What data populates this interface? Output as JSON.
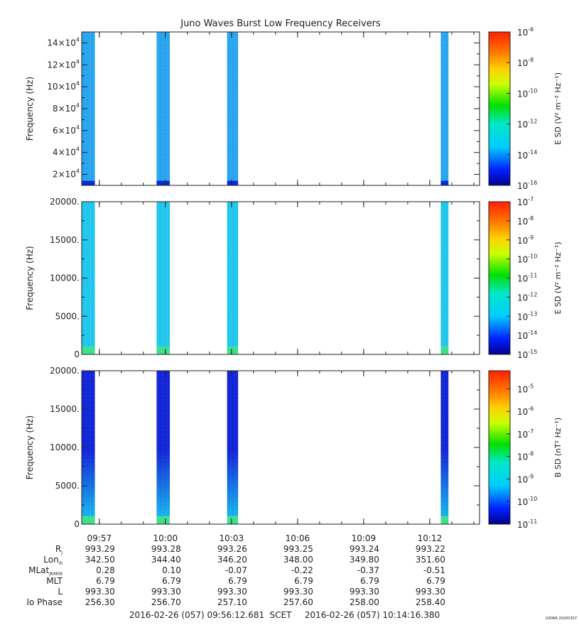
{
  "title": "Juno Waves Burst Low Frequency Receivers",
  "time_range": {
    "start": "2016-02-26 (057) 09:56:12.681",
    "label": "SCET",
    "end": "2016-02-26 (057) 10:14:16.380"
  },
  "credit": "UIOWA 20200307",
  "x_ticks": [
    "09:57",
    "10:00",
    "10:03",
    "10:06",
    "10:09",
    "10:12"
  ],
  "x_tick_minutes": [
    0.8,
    3.8,
    6.8,
    9.8,
    12.8,
    15.8
  ],
  "burst_minutes": [
    {
      "start": 0.0,
      "end": 0.6
    },
    {
      "start": 3.4,
      "end": 4.0
    },
    {
      "start": 6.6,
      "end": 7.1
    },
    {
      "start": 16.3,
      "end": 16.65
    }
  ],
  "time_span_minutes": 18.06,
  "ephemeris": {
    "labels": [
      {
        "main": "R",
        "sub": "J"
      },
      {
        "main": "Lon",
        "sub": "III"
      },
      {
        "main": "MLat",
        "sub": "JRM09"
      },
      {
        "main": "MLT",
        "sub": ""
      },
      {
        "main": "L",
        "sub": ""
      },
      {
        "main": "Io Phase",
        "sub": ""
      }
    ],
    "rows": [
      [
        "993.29",
        "993.28",
        "993.26",
        "993.25",
        "993.24",
        "993.22"
      ],
      [
        "342.50",
        "344.40",
        "346.20",
        "348.00",
        "349.80",
        "351.60"
      ],
      [
        "0.28",
        "0.10",
        "-0.07",
        "-0.22",
        "-0.37",
        "-0.51"
      ],
      [
        "6.79",
        "6.79",
        "6.79",
        "6.79",
        "6.79",
        "6.79"
      ],
      [
        "993.30",
        "993.30",
        "993.30",
        "993.30",
        "993.30",
        "993.30"
      ],
      [
        "256.30",
        "256.70",
        "257.10",
        "257.60",
        "258.00",
        "258.40"
      ]
    ]
  },
  "chart_data": [
    {
      "type": "heatmap",
      "title": "Juno Waves Burst Low Frequency Receivers",
      "ylabel": "Frequency (Hz)",
      "ylim": [
        10000,
        150000
      ],
      "y_ticks": [
        {
          "value": 20000,
          "mantissa": "2×10",
          "exp": "4"
        },
        {
          "value": 40000,
          "mantissa": "4×10",
          "exp": "4"
        },
        {
          "value": 60000,
          "mantissa": "6×10",
          "exp": "4"
        },
        {
          "value": 80000,
          "mantissa": "8×10",
          "exp": "4"
        },
        {
          "value": 100000,
          "mantissa": "10×10",
          "exp": "4"
        },
        {
          "value": 120000,
          "mantissa": "12×10",
          "exp": "4"
        },
        {
          "value": 140000,
          "mantissa": "14×10",
          "exp": "4"
        }
      ],
      "colorbar": {
        "label": "E SD (V² m⁻² Hz⁻¹)",
        "log_range": [
          -16,
          -6
        ],
        "ticks": [
          {
            "exp": "-6",
            "value": -6
          },
          {
            "exp": "-8",
            "value": -8
          },
          {
            "exp": "-10",
            "value": -10
          },
          {
            "exp": "-12",
            "value": -12
          },
          {
            "exp": "-14",
            "value": -14
          },
          {
            "exp": "-16",
            "value": -16
          }
        ]
      },
      "band": {
        "low_color": "#0a2bd6",
        "main_color": "#2aa6f0",
        "low_fraction": 0.03
      }
    },
    {
      "type": "heatmap",
      "ylabel": "Frequency (Hz)",
      "ylim": [
        0,
        20000
      ],
      "y_ticks": [
        {
          "value": 0,
          "mantissa": "0",
          "exp": ""
        },
        {
          "value": 5000,
          "mantissa": "5000.",
          "exp": ""
        },
        {
          "value": 10000,
          "mantissa": "10000.",
          "exp": ""
        },
        {
          "value": 15000,
          "mantissa": "15000.",
          "exp": ""
        },
        {
          "value": 20000,
          "mantissa": "20000.",
          "exp": ""
        }
      ],
      "colorbar": {
        "label": "E SD (V² m⁻² Hz⁻¹)",
        "log_range": [
          -15,
          -7
        ],
        "ticks": [
          {
            "exp": "-7",
            "value": -7
          },
          {
            "exp": "-8",
            "value": -8
          },
          {
            "exp": "-9",
            "value": -9
          },
          {
            "exp": "-10",
            "value": -10
          },
          {
            "exp": "-11",
            "value": -11
          },
          {
            "exp": "-12",
            "value": -12
          },
          {
            "exp": "-13",
            "value": -13
          },
          {
            "exp": "-14",
            "value": -14
          },
          {
            "exp": "-15",
            "value": -15
          }
        ]
      },
      "band": {
        "low_color": "#3ee08a",
        "main_color": "#22c8ee",
        "low_fraction": 0.05
      }
    },
    {
      "type": "heatmap",
      "ylabel": "Frequency (Hz)",
      "ylim": [
        0,
        20000
      ],
      "y_ticks": [
        {
          "value": 0,
          "mantissa": "0",
          "exp": ""
        },
        {
          "value": 5000,
          "mantissa": "5000.",
          "exp": ""
        },
        {
          "value": 10000,
          "mantissa": "10000.",
          "exp": ""
        },
        {
          "value": 15000,
          "mantissa": "15000.",
          "exp": ""
        },
        {
          "value": 20000,
          "mantissa": "20000.",
          "exp": ""
        }
      ],
      "colorbar": {
        "label": "B SD (nT² Hz⁻¹)",
        "log_range": [
          -11,
          -4.2
        ],
        "ticks": [
          {
            "exp": "-5",
            "value": -5
          },
          {
            "exp": "-6",
            "value": -6
          },
          {
            "exp": "-7",
            "value": -7
          },
          {
            "exp": "-8",
            "value": -8
          },
          {
            "exp": "-9",
            "value": -9
          },
          {
            "exp": "-10",
            "value": -10
          },
          {
            "exp": "-11",
            "value": -11
          }
        ]
      },
      "band": {
        "low_color": "#3ee08a",
        "main_color": "#1326d8",
        "mid_color": "#19b6ee",
        "low_fraction": 0.05
      }
    }
  ]
}
